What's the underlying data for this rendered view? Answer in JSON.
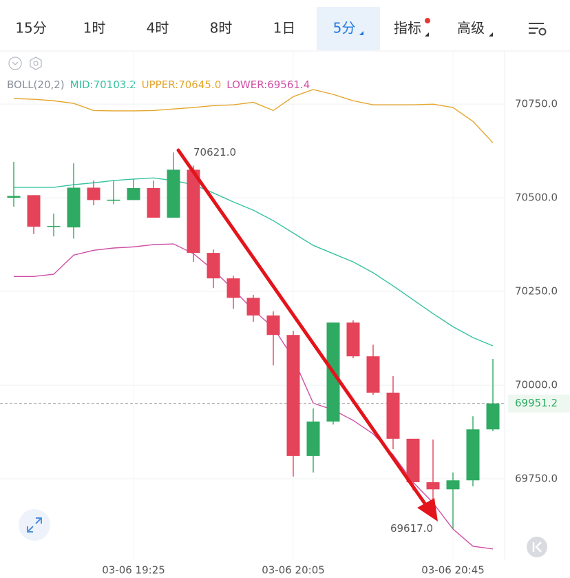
{
  "tabs": [
    "15分",
    "1时",
    "4时",
    "8时",
    "1日",
    "5分",
    "指标",
    "高级"
  ],
  "chart_data": {
    "type": "candlestick",
    "legend": [
      {
        "text": "BOLL(20,2)",
        "color": "#8a8f99"
      },
      {
        "text": "MID:70103.2",
        "color": "#36c2a0"
      },
      {
        "text": "UPPER:70645.0",
        "color": "#e4a52a"
      },
      {
        "text": "LOWER:69561.4",
        "color": "#cf4fa6"
      }
    ],
    "categories": [
      null,
      null,
      null,
      null,
      null,
      null,
      "03-06 19:25",
      null,
      null,
      null,
      null,
      null,
      null,
      null,
      "03-06 20:05",
      null,
      null,
      null,
      null,
      null,
      null,
      null,
      "03-06 20:45",
      null,
      null
    ],
    "open": [
      70500,
      70507,
      70423,
      70421,
      70527,
      70492,
      70494,
      70526,
      70447,
      70575,
      70353,
      70285,
      70233,
      70186,
      70134,
      69811,
      69903,
      70167,
      70077,
      69980,
      69857,
      69741,
      69722,
      69746,
      69882
    ],
    "high": [
      70596,
      70507,
      70458,
      70592,
      70546,
      70546,
      70550,
      70546,
      70621,
      70586,
      70362,
      70292,
      70241,
      70197,
      70145,
      69938,
      70167,
      70173,
      70108,
      70024,
      69857,
      69855,
      69767,
      69917,
      70070
    ],
    "low": [
      70476,
      70403,
      70397,
      70391,
      70480,
      70483,
      70494,
      70447,
      70447,
      70329,
      70259,
      70204,
      70169,
      70053,
      69756,
      69767,
      69895,
      70072,
      69974,
      69829,
      69719,
      69691,
      69617,
      69730,
      69877
    ],
    "close": [
      70505,
      70423,
      70425,
      70527,
      70494,
      70495,
      70526,
      70447,
      70575,
      70353,
      70285,
      70233,
      70186,
      70134,
      69811,
      69903,
      70167,
      70077,
      69980,
      69857,
      69741,
      69722,
      69746,
      69882,
      69951.2
    ],
    "up_color": "#2eaa62",
    "down_color": "#e5435a",
    "overlays": [
      {
        "color": "#e4a52a",
        "values": [
          70765,
          70763,
          70759,
          70752,
          70733,
          70732,
          70732,
          70733,
          70737,
          70741,
          70746,
          70748,
          70755,
          70733,
          70770,
          70789,
          70776,
          70759,
          70748,
          70748,
          70748,
          70750,
          70741,
          70704,
          70647
        ]
      },
      {
        "color": "#36c2a0",
        "values": [
          70528,
          70528,
          70528,
          70535,
          70540,
          70546,
          70550,
          70553,
          70546,
          70535,
          70513,
          70489,
          70467,
          70439,
          70406,
          70373,
          70351,
          70329,
          70300,
          70265,
          70228,
          70191,
          70156,
          70127,
          70105
        ]
      },
      {
        "color": "#cf4fa6",
        "values": [
          70290,
          70290,
          70296,
          70347,
          70360,
          70366,
          70369,
          70375,
          70377,
          70351,
          70307,
          70255,
          70200,
          70154,
          70072,
          69952,
          69934,
          69906,
          69870,
          69814,
          69741,
          69686,
          69616,
          69570,
          69563
        ]
      }
    ],
    "ylim": [
      69535,
      70890
    ],
    "yticks": [
      {
        "value": 69750,
        "label": "69750.0"
      },
      {
        "value": 70000,
        "label": "70000.0"
      },
      {
        "value": 70250,
        "label": "70250.0"
      },
      {
        "value": 70500,
        "label": "70500.0"
      },
      {
        "value": 70750,
        "label": "70750.0"
      }
    ],
    "grid": true,
    "high_label": {
      "index": 8,
      "value": 70621,
      "label": "70621.0"
    },
    "low_label": {
      "index": 22,
      "value": 69617,
      "label": "69617.0"
    },
    "last_price": {
      "value": 69951.2,
      "label": "69951.2"
    }
  }
}
